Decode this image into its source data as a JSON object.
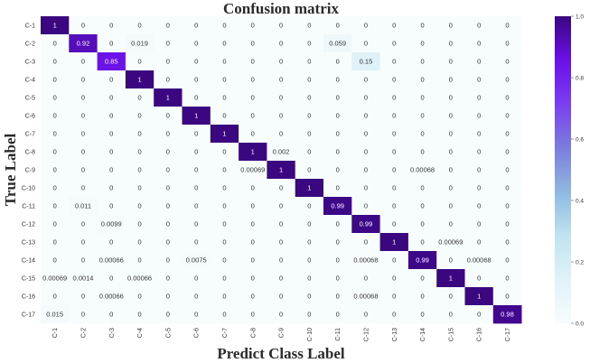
{
  "chart_data": {
    "type": "heatmap",
    "title": "Confusion matrix",
    "xlabel": "Predict Class Label",
    "ylabel": "True Label",
    "rows": [
      "C-1",
      "C-2",
      "C-3",
      "C-4",
      "C-5",
      "C-6",
      "C-7",
      "C-8",
      "C-9",
      "C-10",
      "C-11",
      "C-12",
      "C-13",
      "C-14",
      "C-15",
      "C-16",
      "C-17"
    ],
    "columns": [
      "C-1",
      "C-2",
      "C-3",
      "C-4",
      "C-5",
      "C-6",
      "C-7",
      "C-8",
      "C-9",
      "C-10",
      "C-11",
      "C-12",
      "C-13",
      "C-14",
      "C-15",
      "C-16",
      "C-17"
    ],
    "cells": [
      [
        "1",
        "0",
        "0",
        "0",
        "0",
        "0",
        "0",
        "0",
        "0",
        "0",
        "0",
        "0",
        "0",
        "0",
        "0",
        "0",
        "0"
      ],
      [
        "0",
        "0.92",
        "0",
        "0.019",
        "0",
        "0",
        "0",
        "0",
        "0",
        "0",
        "0.059",
        "0",
        "0",
        "0",
        "0",
        "0",
        "0"
      ],
      [
        "0",
        "0",
        "0.85",
        "0",
        "0",
        "0",
        "0",
        "0",
        "0",
        "0",
        "0",
        "0.15",
        "0",
        "0",
        "0",
        "0",
        "0"
      ],
      [
        "0",
        "0",
        "0",
        "1",
        "0",
        "0",
        "0",
        "0",
        "0",
        "0",
        "0",
        "0",
        "0",
        "0",
        "0",
        "0",
        "0"
      ],
      [
        "0",
        "0",
        "0",
        "0",
        "1",
        "0",
        "0",
        "0",
        "0",
        "0",
        "0",
        "0",
        "0",
        "0",
        "0",
        "0",
        "0"
      ],
      [
        "0",
        "0",
        "0",
        "0",
        "0",
        "1",
        "0",
        "0",
        "0",
        "0",
        "0",
        "0",
        "0",
        "0",
        "0",
        "0",
        "0"
      ],
      [
        "0",
        "0",
        "0",
        "0",
        "0",
        "0",
        "1",
        "0",
        "0",
        "0",
        "0",
        "0",
        "0",
        "0",
        "0",
        "0",
        "0"
      ],
      [
        "0",
        "0",
        "0",
        "0",
        "0",
        "0",
        "0",
        "1",
        "0.002",
        "0",
        "0",
        "0",
        "0",
        "0",
        "0",
        "0",
        "0"
      ],
      [
        "0",
        "0",
        "0",
        "0",
        "0",
        "0",
        "0",
        "0.00069",
        "1",
        "0",
        "0",
        "0",
        "0",
        "0.00068",
        "0",
        "0",
        "0"
      ],
      [
        "0",
        "0",
        "0",
        "0",
        "0",
        "0",
        "0",
        "0",
        "0",
        "1",
        "0",
        "0",
        "0",
        "0",
        "0",
        "0",
        "0"
      ],
      [
        "0",
        "0.011",
        "0",
        "0",
        "0",
        "0",
        "0",
        "0",
        "0",
        "0",
        "0.99",
        "0",
        "0",
        "0",
        "0",
        "0",
        "0"
      ],
      [
        "0",
        "0",
        "0.0099",
        "0",
        "0",
        "0",
        "0",
        "0",
        "0",
        "0",
        "0",
        "0.99",
        "0",
        "0",
        "0",
        "0",
        "0"
      ],
      [
        "0",
        "0",
        "0",
        "0",
        "0",
        "0",
        "0",
        "0",
        "0",
        "0",
        "0",
        "0",
        "1",
        "0",
        "0.00069",
        "0",
        "0"
      ],
      [
        "0",
        "0",
        "0.00066",
        "0",
        "0",
        "0.0075",
        "0",
        "0",
        "0",
        "0",
        "0",
        "0.00068",
        "0",
        "0.99",
        "0",
        "0.00068",
        "0"
      ],
      [
        "0.00069",
        "0.0014",
        "0",
        "0.00066",
        "0",
        "0",
        "0",
        "0",
        "0",
        "0",
        "0",
        "0",
        "0",
        "0",
        "1",
        "0",
        "0"
      ],
      [
        "0",
        "0",
        "0.00066",
        "0",
        "0",
        "0",
        "0",
        "0",
        "0",
        "0",
        "0",
        "0.00068",
        "0",
        "0",
        "0",
        "1",
        "0"
      ],
      [
        "0.015",
        "0",
        "0",
        "0",
        "0",
        "0",
        "0",
        "0",
        "0",
        "0",
        "0",
        "0",
        "0",
        "0",
        "0",
        "0",
        "0.98"
      ]
    ],
    "colorbar": {
      "range": [
        0,
        1
      ],
      "ticks": [
        "0.0",
        "0.2",
        "0.4",
        "0.6",
        "0.8",
        "1.0"
      ],
      "colormap": [
        "#f7fcfd",
        "#e0f3f8",
        "#bfe3ef",
        "#8fb8e0",
        "#7b7dde",
        "#7b3ff0",
        "#6a10e8",
        "#3a0780"
      ]
    }
  }
}
